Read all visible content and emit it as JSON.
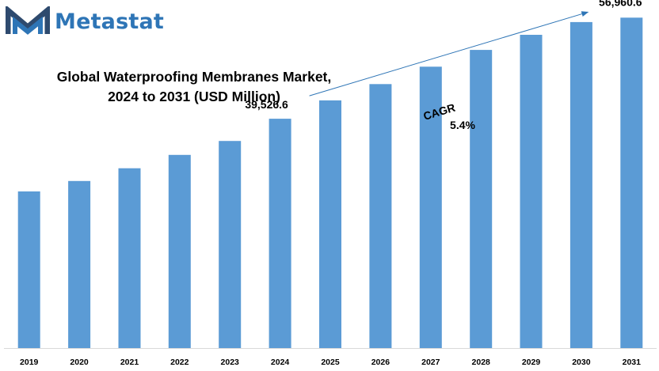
{
  "brand": {
    "name": "Metastat",
    "color": "#2e75b6",
    "icon": "metastat-m-logo"
  },
  "chart_data": {
    "type": "bar",
    "title_lines": [
      "Global Waterproofing Membranes Market,",
      "2024 to 2031 (USD Million)"
    ],
    "xlabel": "",
    "ylabel": "",
    "categories": [
      "2019",
      "2020",
      "2021",
      "2022",
      "2023",
      "2024",
      "2025",
      "2026",
      "2027",
      "2028",
      "2029",
      "2030",
      "2031"
    ],
    "values": [
      27000,
      28800,
      31000,
      33300,
      35700,
      39526.6,
      42700,
      45500,
      48500,
      51400,
      54000,
      56200,
      56960.6
    ],
    "ylim": [
      0,
      60000
    ],
    "bar_color": "#5b9bd5",
    "grid": false,
    "legend": "none",
    "labels": [
      {
        "category": "2024",
        "text": "39,526.6"
      },
      {
        "category": "2031",
        "text": "56,960.6"
      }
    ],
    "annotations": {
      "cagr_label": "CAGR",
      "cagr_value": "5.4%",
      "arrow_color": "#2e75b6"
    }
  }
}
